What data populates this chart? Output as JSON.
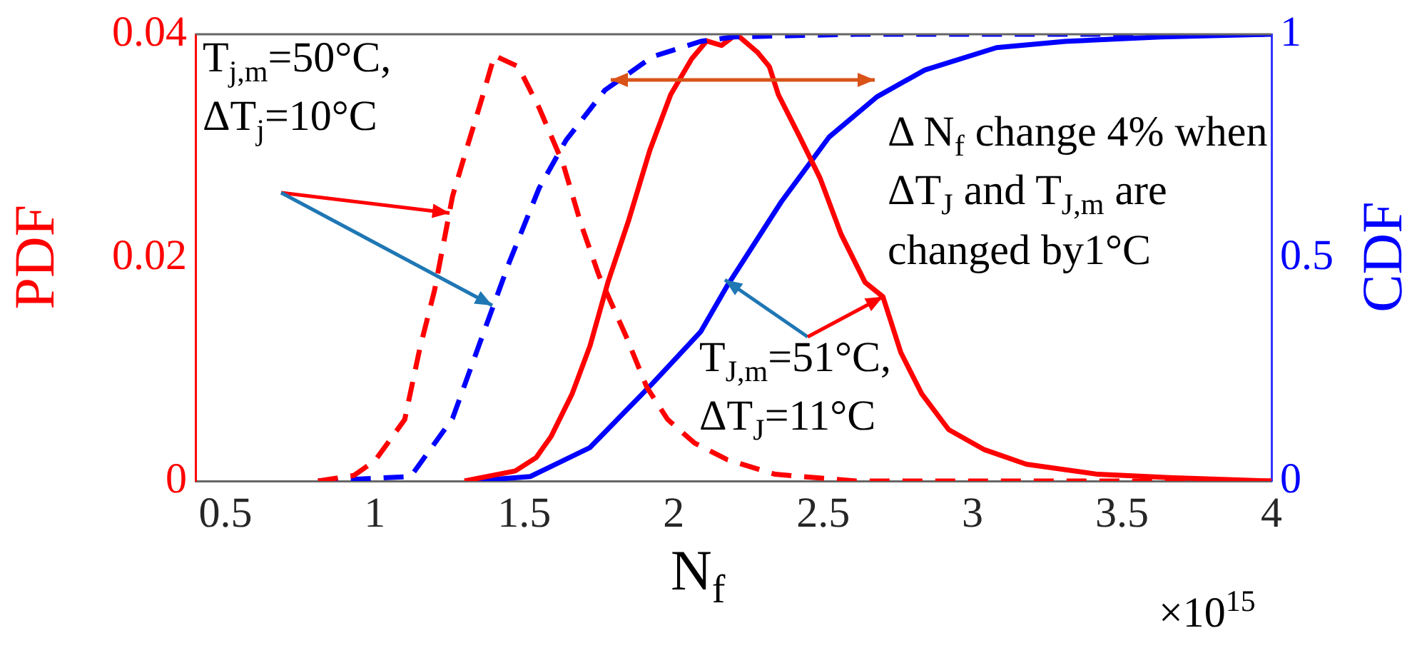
{
  "chart_data": {
    "type": "line",
    "xlabel": "N$_{f}$",
    "ylabel": "PDF",
    "y2label": "CDF",
    "xlim": [
      0.4,
      4
    ],
    "xticks": [
      0.5,
      1,
      1.5,
      2,
      2.5,
      3,
      3.5,
      4
    ],
    "ylim": [
      0,
      0.04
    ],
    "yticks": [
      0,
      0.02,
      0.04
    ],
    "y2lim": [
      0,
      1
    ],
    "y2ticks": [
      0,
      0.5,
      1
    ],
    "grid": false,
    "legend": false,
    "annotations": [
      {
        "text": "T$_{j,m}$=50°C, ΔT$_{j}$=10°C",
        "x": 1.25,
        "y": 0.024
      },
      {
        "text": "T$_{J,m}$=51°C, ΔT$_{J}$=11°C",
        "x": 2.7,
        "y": 0.0165
      },
      "Δ N$_{f}$ change 4% when ΔT$_{J}$ and T$_{J,m}$ are changed by1°C",
      "×10$^{15}$"
    ],
    "series": [
      {
        "axis": "y",
        "color": "#ff0000",
        "line_style": "dashed",
        "x": [
          0.81,
          0.93,
          1.0,
          1.1,
          1.15,
          1.2,
          1.26,
          1.31,
          1.36,
          1.4,
          1.48,
          1.55,
          1.63,
          1.69,
          1.75,
          1.84,
          1.91,
          1.98,
          2.07,
          2.18,
          2.34,
          2.61,
          4.0
        ],
        "values": [
          0,
          0.0005,
          0.0018,
          0.0055,
          0.0118,
          0.0171,
          0.0255,
          0.03,
          0.0344,
          0.0381,
          0.0371,
          0.0334,
          0.0284,
          0.023,
          0.0184,
          0.013,
          0.0084,
          0.0055,
          0.0034,
          0.0019,
          0.0006,
          0,
          0
        ]
      },
      {
        "axis": "y2",
        "color": "#0000ff",
        "line_style": "dashed",
        "x": [
          0.81,
          1.12,
          1.26,
          1.36,
          1.45,
          1.55,
          1.64,
          1.77,
          1.93,
          2.09,
          2.2,
          2.61,
          4.0
        ],
        "values": [
          0,
          0.01,
          0.14,
          0.325,
          0.49,
          0.656,
          0.763,
          0.875,
          0.95,
          0.984,
          0.994,
          1,
          1
        ]
      },
      {
        "axis": "y",
        "color": "#ff0000",
        "line_style": "solid",
        "x": [
          1.3,
          1.47,
          1.54,
          1.59,
          1.66,
          1.72,
          1.78,
          1.85,
          1.92,
          1.99,
          2.06,
          2.11,
          2.16,
          2.21,
          2.28,
          2.32,
          2.35,
          2.42,
          2.49,
          2.56,
          2.64,
          2.7,
          2.76,
          2.83,
          2.92,
          3.04,
          3.18,
          3.42,
          3.66,
          4.0
        ],
        "values": [
          0,
          0.0009,
          0.0021,
          0.004,
          0.0078,
          0.0121,
          0.0178,
          0.0234,
          0.0296,
          0.0346,
          0.0378,
          0.0394,
          0.039,
          0.04,
          0.0384,
          0.0371,
          0.0346,
          0.0309,
          0.0271,
          0.0221,
          0.0178,
          0.0165,
          0.0115,
          0.0078,
          0.0046,
          0.0028,
          0.0015,
          0.0006,
          0.0003,
          0
        ]
      },
      {
        "axis": "y2",
        "color": "#0000ff",
        "line_style": "solid",
        "x": [
          1.33,
          1.52,
          1.72,
          1.93,
          2.09,
          2.18,
          2.36,
          2.52,
          2.68,
          2.84,
          3.08,
          3.31,
          3.63,
          4.0
        ],
        "values": [
          0,
          0.01,
          0.075,
          0.219,
          0.334,
          0.438,
          0.625,
          0.77,
          0.86,
          0.92,
          0.97,
          0.984,
          0.994,
          1
        ]
      }
    ]
  }
}
